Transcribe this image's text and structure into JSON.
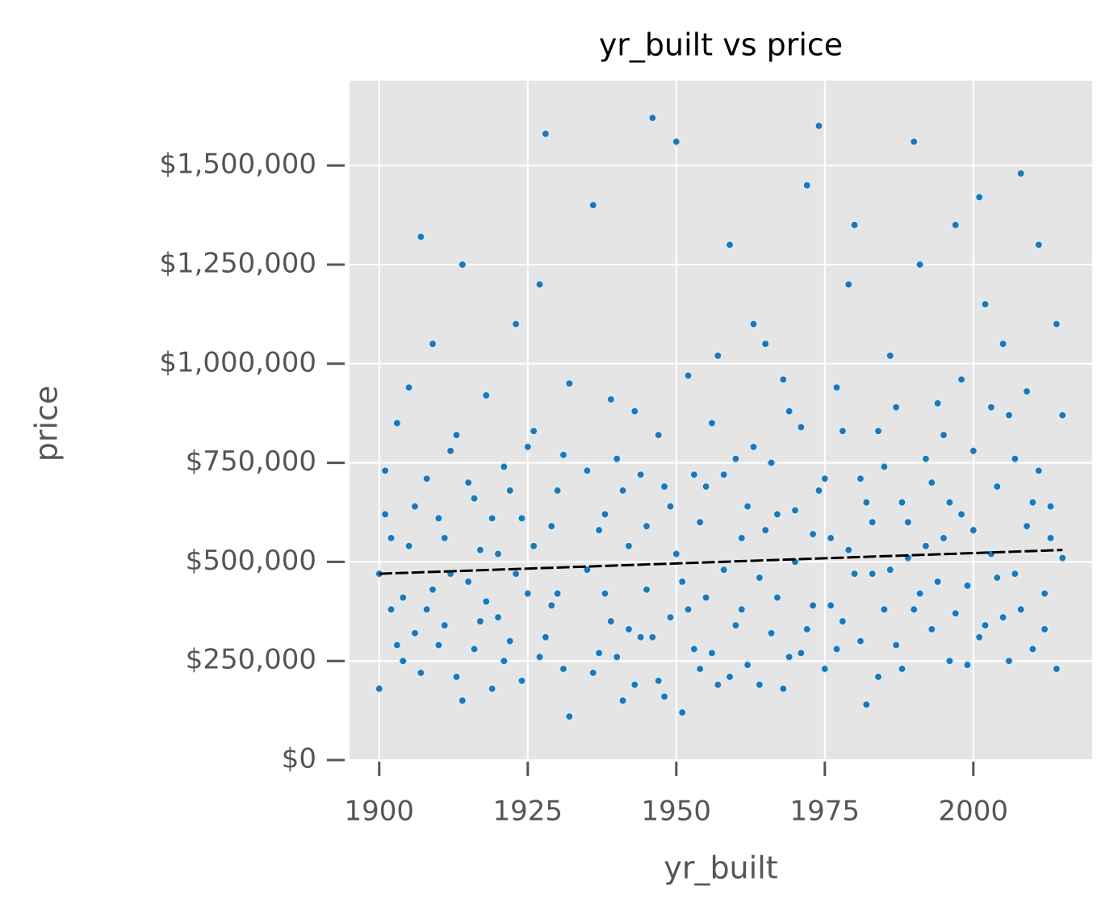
{
  "chart_data": {
    "type": "scatter",
    "title": "yr_built vs price",
    "x_label": "yr_built",
    "y_label": "price",
    "color": "#1f77b4",
    "grid": true,
    "xlim": [
      1895,
      2020
    ],
    "xticks": [
      1900,
      1925,
      1950,
      1975,
      2000
    ],
    "ylim": [
      0,
      1714000
    ],
    "yticks": [
      {
        "value": 0,
        "label": "$0"
      },
      {
        "value": 250000,
        "label": "$250,000"
      },
      {
        "value": 500000,
        "label": "$500,000"
      },
      {
        "value": 750000,
        "label": "$750,000"
      },
      {
        "value": 1000000,
        "label": "$1,000,000"
      },
      {
        "value": 1250000,
        "label": "$1,250,000"
      },
      {
        "value": 1500000,
        "label": "$1,500,000"
      }
    ],
    "x": [
      1900,
      1901,
      1902,
      1903,
      1904,
      1905,
      1906,
      1907,
      1908,
      1909,
      1910,
      1911,
      1912,
      1913,
      1914,
      1915,
      1916,
      1917,
      1918,
      1919,
      1920,
      1921,
      1922,
      1923,
      1924,
      1925,
      1926,
      1927,
      1928,
      1929,
      1930,
      1931,
      1932,
      1935,
      1936,
      1937,
      1938,
      1939,
      1940,
      1941,
      1942,
      1943,
      1944,
      1945,
      1946,
      1947,
      1948,
      1949,
      1950,
      1951,
      1952,
      1953,
      1954,
      1955,
      1956,
      1957,
      1958,
      1959,
      1960,
      1961,
      1962,
      1963,
      1964,
      1965,
      1966,
      1967,
      1968,
      1969,
      1970,
      1971,
      1972,
      1973,
      1974,
      1975,
      1976,
      1977,
      1978,
      1979,
      1980,
      1981,
      1982,
      1983,
      1984,
      1985,
      1986,
      1987,
      1988,
      1989,
      1990,
      1991,
      1992,
      1993,
      1994,
      1995,
      1996,
      1997,
      1998,
      1999,
      2000,
      2001,
      2002,
      2003,
      2004,
      2005,
      2006,
      2007,
      2008,
      2009,
      2010,
      2011,
      2012,
      2013,
      2014,
      2015,
      1900,
      1901,
      1902,
      1903,
      1904,
      1905,
      1906,
      1907,
      1908,
      1909,
      1910,
      1911,
      1912,
      1913,
      1914,
      1915,
      1916,
      1917,
      1918,
      1919,
      1920,
      1921,
      1922,
      1923,
      1924,
      1925,
      1926,
      1927,
      1928,
      1929,
      1930,
      1931,
      1932,
      1935,
      1936,
      1937,
      1938,
      1939,
      1940,
      1941,
      1942,
      1943,
      1944,
      1945,
      1946,
      1947,
      1948,
      1949,
      1950,
      1951,
      1952,
      1953,
      1954,
      1955,
      1956,
      1957,
      1958,
      1959,
      1960,
      1961,
      1962,
      1963,
      1964,
      1965,
      1966,
      1967,
      1968,
      1969,
      1970,
      1971,
      1972,
      1973,
      1974,
      1975,
      1976,
      1977,
      1978,
      1979,
      1980,
      1981,
      1982,
      1983,
      1984,
      1985,
      1986,
      1987,
      1988,
      1989,
      1990,
      1991,
      1992,
      1993,
      1994,
      1995,
      1996,
      1997,
      1998,
      1999,
      2000,
      2001,
      2002,
      2003,
      2004,
      2005,
      2006,
      2007,
      2008,
      2009,
      2010,
      2011,
      2012,
      2013,
      2014,
      2015
    ],
    "values": [
      470000,
      620000,
      380000,
      850000,
      250000,
      540000,
      320000,
      1320000,
      710000,
      430000,
      290000,
      560000,
      780000,
      210000,
      1250000,
      450000,
      660000,
      350000,
      920000,
      180000,
      520000,
      740000,
      300000,
      1100000,
      610000,
      420000,
      830000,
      260000,
      1580000,
      390000,
      680000,
      230000,
      950000,
      480000,
      1400000,
      270000,
      620000,
      350000,
      760000,
      150000,
      540000,
      880000,
      310000,
      430000,
      1620000,
      200000,
      690000,
      360000,
      520000,
      120000,
      970000,
      280000,
      600000,
      410000,
      850000,
      190000,
      720000,
      1300000,
      340000,
      560000,
      240000,
      790000,
      460000,
      1050000,
      320000,
      620000,
      180000,
      880000,
      500000,
      270000,
      1450000,
      390000,
      680000,
      230000,
      560000,
      940000,
      350000,
      1200000,
      470000,
      710000,
      140000,
      600000,
      830000,
      380000,
      1020000,
      290000,
      650000,
      510000,
      1560000,
      420000,
      760000,
      330000,
      900000,
      560000,
      250000,
      1350000,
      620000,
      440000,
      780000,
      310000,
      1150000,
      520000,
      690000,
      360000,
      870000,
      470000,
      1480000,
      590000,
      280000,
      730000,
      420000,
      640000,
      1100000,
      510000,
      180000,
      730000,
      560000,
      290000,
      410000,
      940000,
      640000,
      220000,
      380000,
      1050000,
      610000,
      340000,
      470000,
      820000,
      150000,
      700000,
      280000,
      530000,
      400000,
      610000,
      360000,
      250000,
      680000,
      470000,
      200000,
      790000,
      540000,
      1200000,
      310000,
      590000,
      420000,
      770000,
      110000,
      730000,
      220000,
      580000,
      420000,
      910000,
      260000,
      680000,
      330000,
      190000,
      720000,
      590000,
      310000,
      820000,
      160000,
      640000,
      1560000,
      450000,
      380000,
      720000,
      230000,
      690000,
      270000,
      1020000,
      480000,
      210000,
      760000,
      380000,
      640000,
      1100000,
      190000,
      580000,
      750000,
      410000,
      960000,
      260000,
      630000,
      840000,
      330000,
      570000,
      1600000,
      710000,
      390000,
      280000,
      830000,
      530000,
      1350000,
      300000,
      650000,
      470000,
      210000,
      740000,
      480000,
      890000,
      230000,
      600000,
      380000,
      1250000,
      540000,
      700000,
      450000,
      820000,
      650000,
      370000,
      960000,
      240000,
      580000,
      1420000,
      340000,
      890000,
      460000,
      1050000,
      250000,
      760000,
      380000,
      930000,
      650000,
      1300000,
      330000,
      560000,
      230000,
      870000
    ],
    "trend": {
      "color": "#000000",
      "x": [
        1900,
        2015
      ],
      "values": [
        470000,
        530000
      ]
    }
  }
}
